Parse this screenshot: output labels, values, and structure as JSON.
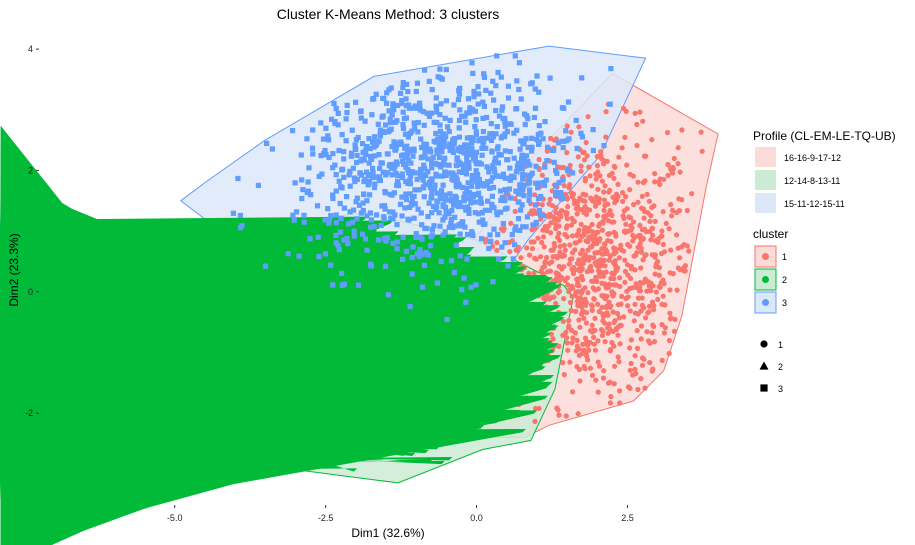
{
  "chart_data": {
    "type": "scatter",
    "title": "Cluster K-Means Method: 3 clusters",
    "xlabel": "Dim1 (32.6%)",
    "ylabel": "Dim2 (23.3%)",
    "xlim": [
      -6.9,
      4.0
    ],
    "ylim": [
      -3.3,
      4.15
    ],
    "x_ticks": [
      -5.0,
      -2.5,
      0.0,
      2.5
    ],
    "x_tick_labels": [
      "-5.0",
      "-2.5",
      "0.0",
      "2.5"
    ],
    "y_ticks": [
      -2,
      0,
      2,
      4
    ],
    "y_tick_labels": [
      "-2",
      "0",
      "2",
      "4"
    ],
    "grid": false,
    "legend_position": "right",
    "legend_titles": {
      "fill": "Profile (CL-EM-LE-TQ-UB)",
      "color": "cluster"
    },
    "series": [
      {
        "name": "1",
        "profile": "16-16-9-17-12",
        "marker": "circle",
        "color": "#F8766D",
        "fill": "#FADBD8",
        "center": [
          1.9,
          0.4
        ],
        "spread": [
          0.9,
          1.1
        ],
        "hull": [
          [
            2.25,
            3.6
          ],
          [
            4.0,
            2.6
          ],
          [
            3.8,
            1.7
          ],
          [
            3.4,
            -0.4
          ],
          [
            3.1,
            -1.3
          ],
          [
            2.6,
            -1.8
          ],
          [
            1.2,
            -2.2
          ],
          [
            0.8,
            -2.4
          ],
          [
            0.25,
            -2.4
          ],
          [
            0.0,
            -1.8
          ],
          [
            -0.15,
            -0.55
          ],
          [
            0.0,
            0.9
          ],
          [
            0.9,
            2.2
          ]
        ]
      },
      {
        "name": "2",
        "profile": "12-14-8-13-11",
        "marker": "triangle",
        "color": "#00BA38",
        "fill": "#CCEBD5",
        "center": [
          -1.0,
          -0.8
        ],
        "spread": [
          1.6,
          0.8
        ],
        "hull": [
          [
            -5.6,
            0.95
          ],
          [
            -4.4,
            1.05
          ],
          [
            -1.8,
            1.3
          ],
          [
            0.0,
            0.85
          ],
          [
            1.45,
            0.1
          ],
          [
            1.6,
            -0.1
          ],
          [
            1.3,
            -1.6
          ],
          [
            0.9,
            -2.45
          ],
          [
            0.1,
            -2.6
          ],
          [
            -1.3,
            -3.15
          ],
          [
            -4.8,
            -2.7
          ],
          [
            -6.0,
            -2.4
          ],
          [
            -6.8,
            -0.9
          ],
          [
            -6.3,
            -0.1
          ]
        ]
      },
      {
        "name": "3",
        "profile": "15-11-12-15-11",
        "marker": "square",
        "color": "#619CFF",
        "fill": "#DCE8F8",
        "center": [
          -0.6,
          2.0
        ],
        "spread": [
          1.2,
          0.8
        ],
        "hull": [
          [
            -1.7,
            3.55
          ],
          [
            1.2,
            4.05
          ],
          [
            2.8,
            3.85
          ],
          [
            2.05,
            2.25
          ],
          [
            0.85,
            0.85
          ],
          [
            -0.15,
            -0.55
          ],
          [
            -0.8,
            -0.45
          ],
          [
            -3.45,
            0.15
          ],
          [
            -4.3,
            1.05
          ],
          [
            -4.9,
            1.5
          ],
          [
            -4.5,
            1.8
          ],
          [
            -3.5,
            2.5
          ]
        ]
      }
    ],
    "shape_legend": [
      {
        "label": "1",
        "marker": "circle"
      },
      {
        "label": "2",
        "marker": "triangle"
      },
      {
        "label": "3",
        "marker": "square"
      }
    ],
    "point_color": "#F8766D"
  }
}
